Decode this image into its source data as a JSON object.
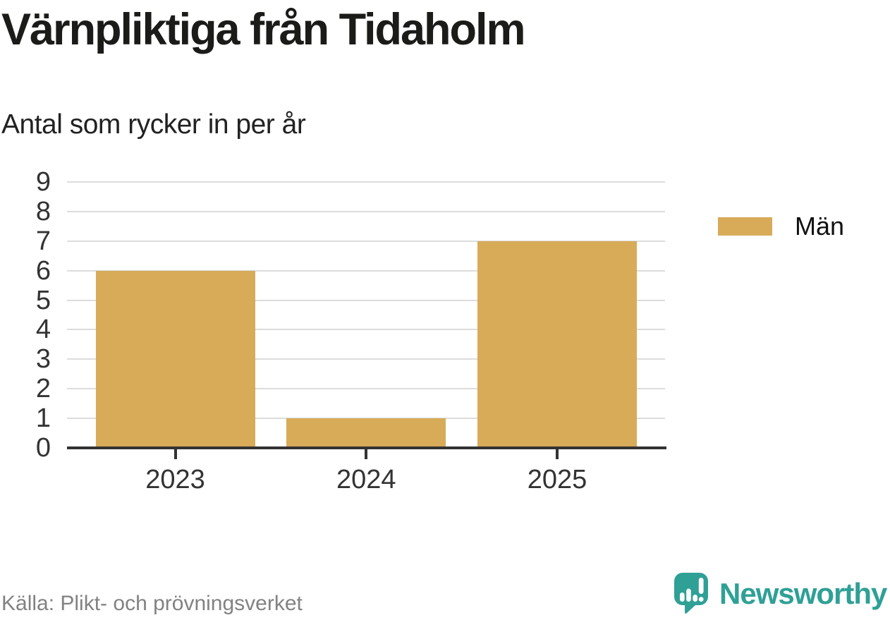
{
  "chart_data": {
    "type": "bar",
    "title": "Värnpliktiga från Tidaholm",
    "subtitle": "Antal som rycker in per år",
    "categories": [
      "2023",
      "2024",
      "2025"
    ],
    "series": [
      {
        "name": "Män",
        "values": [
          6,
          1,
          7
        ],
        "color": "#d7ab58"
      }
    ],
    "ylim": [
      0,
      9
    ],
    "yticks": [
      0,
      1,
      2,
      3,
      4,
      5,
      6,
      7,
      8,
      9
    ],
    "grid": "horizontal gridlines on",
    "legend_position": "right",
    "source": "Källa: Plikt- och prövningsverket"
  },
  "brand": {
    "name": "Newsworthy",
    "color": "#2fa096",
    "icon": "speech-bubble-with-bar-chart-and-exclamation"
  },
  "colors": {
    "bar": "#d7ab58",
    "axis": "#333333",
    "gridline": "#dcdcdc",
    "title_text": "#1b1b19",
    "muted_text": "#828282",
    "background": "#ffffff"
  }
}
